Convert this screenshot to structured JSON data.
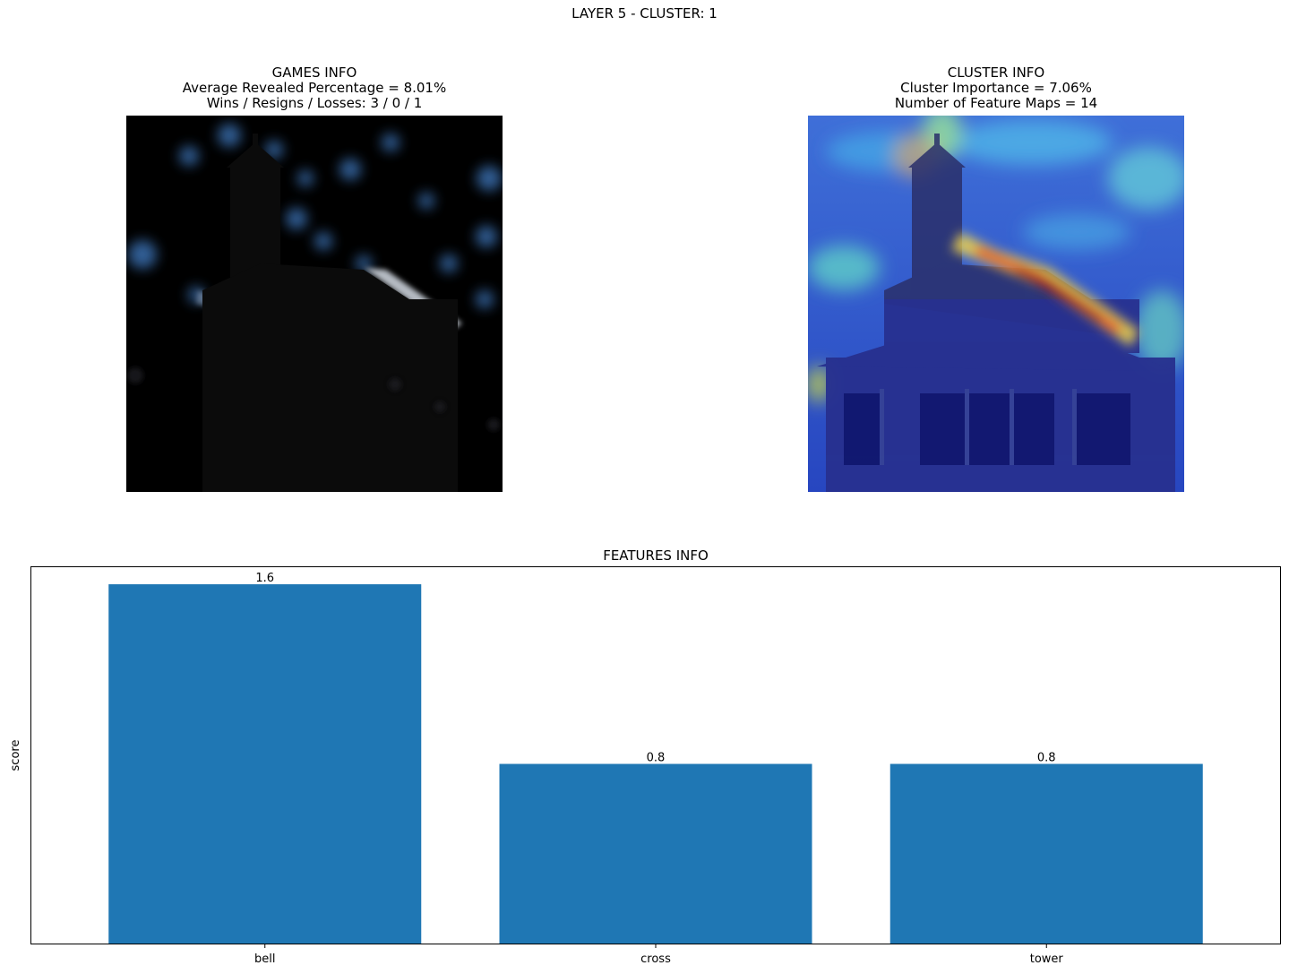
{
  "suptitle": "LAYER 5 - CLUSTER: 1",
  "games_info": {
    "title": "GAMES INFO",
    "line1": "Average Revealed Percentage = 8.01%",
    "line2": "Wins / Resigns / Losses: 3 / 0 / 1"
  },
  "cluster_info": {
    "title": "CLUSTER INFO",
    "line1": "Cluster Importance = 7.06%",
    "line2": "Number of Feature Maps = 14"
  },
  "chart_data": {
    "type": "bar",
    "title": "FEATURES INFO",
    "xlabel": "",
    "ylabel": "score",
    "categories": [
      "bell",
      "cross",
      "tower"
    ],
    "values": [
      1.6,
      0.8,
      0.8
    ],
    "data_labels": [
      "1.6",
      "0.8",
      "0.8"
    ],
    "ylim": [
      0,
      1.68
    ],
    "y_ticks_shown": false,
    "grid": false,
    "legend": "none",
    "bar_color": "#1f77b4"
  }
}
